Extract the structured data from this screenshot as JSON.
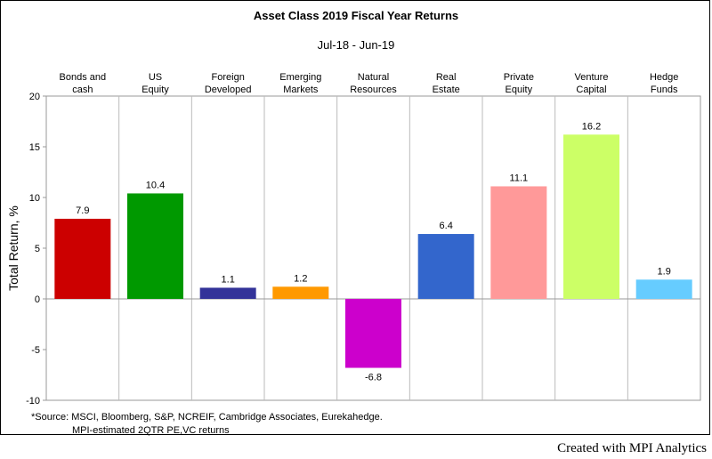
{
  "chart_data": {
    "type": "bar",
    "title": "Asset Class 2019 Fiscal Year Returns",
    "subtitle": "Jul-18 - Jun-19",
    "ylabel": "Total Return, %",
    "ylim": [
      -10,
      20
    ],
    "yticks": [
      "-10",
      "-5",
      "0",
      "5",
      "10",
      "15",
      "20"
    ],
    "yticks_values": [
      -10,
      -5,
      0,
      5,
      10,
      15,
      20
    ],
    "grid": "vertical separators between categories, horizontal at 0",
    "categories": [
      [
        "Bonds and",
        "cash"
      ],
      [
        "US",
        "Equity"
      ],
      [
        "Foreign",
        "Developed"
      ],
      [
        "Emerging",
        "Markets"
      ],
      [
        "Natural",
        "Resources"
      ],
      [
        "Real",
        "Estate"
      ],
      [
        "Private",
        "Equity"
      ],
      [
        "Venture",
        "Capital"
      ],
      [
        "Hedge",
        "Funds"
      ]
    ],
    "values": [
      7.9,
      10.4,
      1.1,
      1.2,
      -6.8,
      6.4,
      11.1,
      16.2,
      1.9
    ],
    "value_labels": [
      "7.9",
      "10.4",
      "1.1",
      "1.2",
      "-6.8",
      "6.4",
      "11.1",
      "16.2",
      "1.9"
    ],
    "colors": [
      "#cc0000",
      "#009900",
      "#333399",
      "#ff9900",
      "#cc00cc",
      "#3366cc",
      "#ff9999",
      "#ccff66",
      "#66ccff"
    ]
  },
  "footnote": {
    "line1": "*Source: MSCI, Bloomberg, S&P, NCREIF, Cambridge Associates, Eurekahedge.",
    "line2": "MPI-estimated 2QTR PE,VC returns"
  },
  "credit": "Created with MPI Analytics"
}
